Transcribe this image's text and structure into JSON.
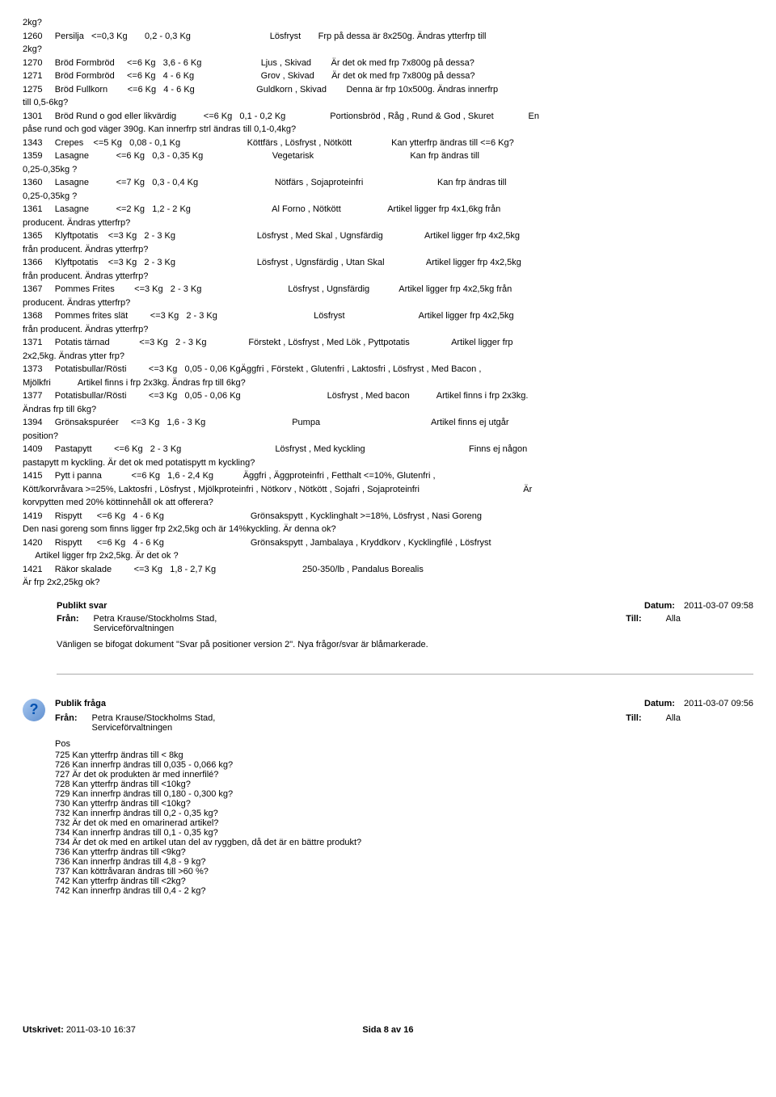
{
  "body_lines": [
    "2kg?",
    "1260     Persilja   <=0,3 Kg       0,2 - 0,3 Kg                                Lösfryst       Frp på dessa är 8x250g. Ändras ytterfrp till",
    "2kg?",
    "1270     Bröd Formbröd     <=6 Kg   3,6 - 6 Kg                        Ljus , Skivad        Är det ok med frp 7x800g på dessa?",
    "1271     Bröd Formbröd     <=6 Kg   4 - 6 Kg                           Grov , Skivad       Är det ok med frp 7x800g på dessa?",
    "1275     Bröd Fullkorn        <=6 Kg   4 - 6 Kg                         Guldkorn , Skivad        Denna är frp 10x500g. Ändras innerfrp",
    "till 0,5-6kg?",
    "1301     Bröd Rund o god eller likvärdig           <=6 Kg   0,1 - 0,2 Kg                  Portionsbröd , Råg , Rund & God , Skuret              En",
    "påse rund och god väger 390g. Kan innerfrp strl ändras till 0,1-0,4kg?",
    "1343     Crepes    <=5 Kg   0,08 - 0,1 Kg                           Köttfärs , Lösfryst , Nötkött                Kan ytterfrp ändras till <=6 Kg?",
    "1359     Lasagne           <=6 Kg   0,3 - 0,35 Kg                            Vegetarisk                                       Kan frp ändras till",
    "0,25-0,35kg ?",
    "1360     Lasagne           <=7 Kg   0,3 - 0,4 Kg                               Nötfärs , Sojaproteinfri                              Kan frp ändras till",
    "0,25-0,35kg ?",
    "1361     Lasagne           <=2 Kg   1,2 - 2 Kg                                 Al Forno , Nötkött                   Artikel ligger frp 4x1,6kg från",
    "producent. Ändras ytterfrp?",
    "1365     Klyftpotatis    <=3 Kg   2 - 3 Kg                                 Lösfryst , Med Skal , Ugnsfärdig                 Artikel ligger frp 4x2,5kg",
    "från producent. Ändras ytterfrp?",
    "1366     Klyftpotatis    <=3 Kg   2 - 3 Kg                                 Lösfryst , Ugnsfärdig , Utan Skal                 Artikel ligger frp 4x2,5kg",
    "från producent. Ändras ytterfrp?",
    "1367     Pommes Frites        <=3 Kg   2 - 3 Kg                                   Lösfryst , Ugnsfärdig            Artikel ligger frp 4x2,5kg från",
    "producent. Ändras ytterfrp?",
    "1368     Pommes frites slät         <=3 Kg   2 - 3 Kg                                       Lösfryst                              Artikel ligger frp 4x2,5kg",
    "från producent. Ändras ytterfrp?",
    "1371     Potatis tärnad            <=3 Kg   2 - 3 Kg                 Förstekt , Lösfryst , Med Lök , Pyttpotatis                 Artikel ligger frp",
    "2x2,5kg. Ändras ytter frp?",
    "1373     Potatisbullar/Rösti         <=3 Kg   0,05 - 0,06 KgÄggfri , Förstekt , Glutenfri , Laktosfri , Lösfryst , Med Bacon ,",
    "Mjölkfri           Artikel finns i frp 2x3kg. Ändras frp till 6kg?",
    "1377     Potatisbullar/Rösti         <=3 Kg   0,05 - 0,06 Kg                                   Lösfryst , Med bacon           Artikel finns i frp 2x3kg.",
    "Ändras frp till 6kg?",
    "1394     Grönsakspuréer     <=3 Kg   1,6 - 3 Kg                                   Pumpa                                             Artikel finns ej utgår",
    "position?",
    "1409     Pastapytt         <=6 Kg   2 - 3 Kg                                      Lösfryst , Med kyckling                                          Finns ej någon",
    "pastapytt m kyckling. Är det ok med potatispytt m kyckling?",
    "1415     Pytt i panna            <=6 Kg   1,6 - 2,4 Kg            Äggfri , Äggproteinfri , Fetthalt <=10%, Glutenfri ,",
    "Kött/korvråvara >=25%, Laktosfri , Lösfryst , Mjölkproteinfri , Nötkorv , Nötkött , Sojafri , Sojaproteinfri                                          Är",
    "korvpytten med 20% köttinnehåll ok att offerera?",
    "1419     Rispytt      <=6 Kg   4 - 6 Kg                                   Grönsakspytt , Kycklinghalt >=18%, Lösfryst , Nasi Goreng",
    "Den nasi goreng som finns ligger frp 2x2,5kg och är 14%kyckling. Är denna ok?",
    "1420     Rispytt      <=6 Kg   4 - 6 Kg                                   Grönsakspytt , Jambalaya , Kryddkorv , Kycklingfilé , Lösfryst",
    "     Artikel ligger frp 2x2,5kg. Är det ok ?",
    "1421     Räkor skalade         <=3 Kg   1,8 - 2,7 Kg                                   250-350/lb , Pandalus Borealis",
    "Är frp 2x2,25kg ok?"
  ],
  "answer": {
    "title": "Publikt svar",
    "date_label": "Datum:",
    "date_value": "2011-03-07  09:58",
    "from_label": "Från:",
    "from_value": "Petra Krause/Stockholms Stad, Serviceförvaltningen",
    "to_label": "Till:",
    "to_value": "Alla",
    "attach": "Vänligen se bifogat dokument \"Svar på positioner version 2\". Nya frågor/svar är blåmarkerade."
  },
  "question": {
    "icon": "?",
    "title": "Publik fråga",
    "date_label": "Datum:",
    "date_value": "2011-03-07  09:56",
    "from_label": "Från:",
    "from_value": "Petra Krause/Stockholms Stad, Serviceförvaltningen",
    "to_label": "Till:",
    "to_value": "Alla",
    "pos_label": "Pos",
    "items": [
      "725 Kan ytterfrp ändras till <  8kg",
      "726 Kan innerfrp ändras till 0,035 - 0,066 kg?",
      "727 Är det ok produkten är med innerfilé?",
      "728 Kan ytterfrp ändras till <10kg?",
      "729 Kan innerfrp ändras till 0,180 - 0,300 kg?",
      "730 Kan ytterfrp ändras till <10kg?",
      "732 Kan innerfrp ändras till 0,2 - 0,35 kg?",
      "732 Är det ok med en omarinerad artikel?",
      "734 Kan innerfrp ändras till 0,1 - 0,35 kg?",
      "734 Är det ok med en artikel utan del av ryggben, då det är en bättre produkt?",
      "736 Kan ytterfrp ändras till <9kg?",
      "736 Kan innerfrp ändras till 4,8 - 9 kg?",
      "737 Kan köttråvaran ändras till >60 %?",
      "742 Kan ytterfrp ändras till <2kg?",
      "742 Kan innerfrp ändras till 0,4 - 2 kg?"
    ]
  },
  "footer": {
    "printed_label": "Utskrivet:",
    "printed_value": "2011-03-10 16:37",
    "page_prefix": "Sida",
    "page_num": "8",
    "page_mid": "av",
    "page_total": "16"
  }
}
